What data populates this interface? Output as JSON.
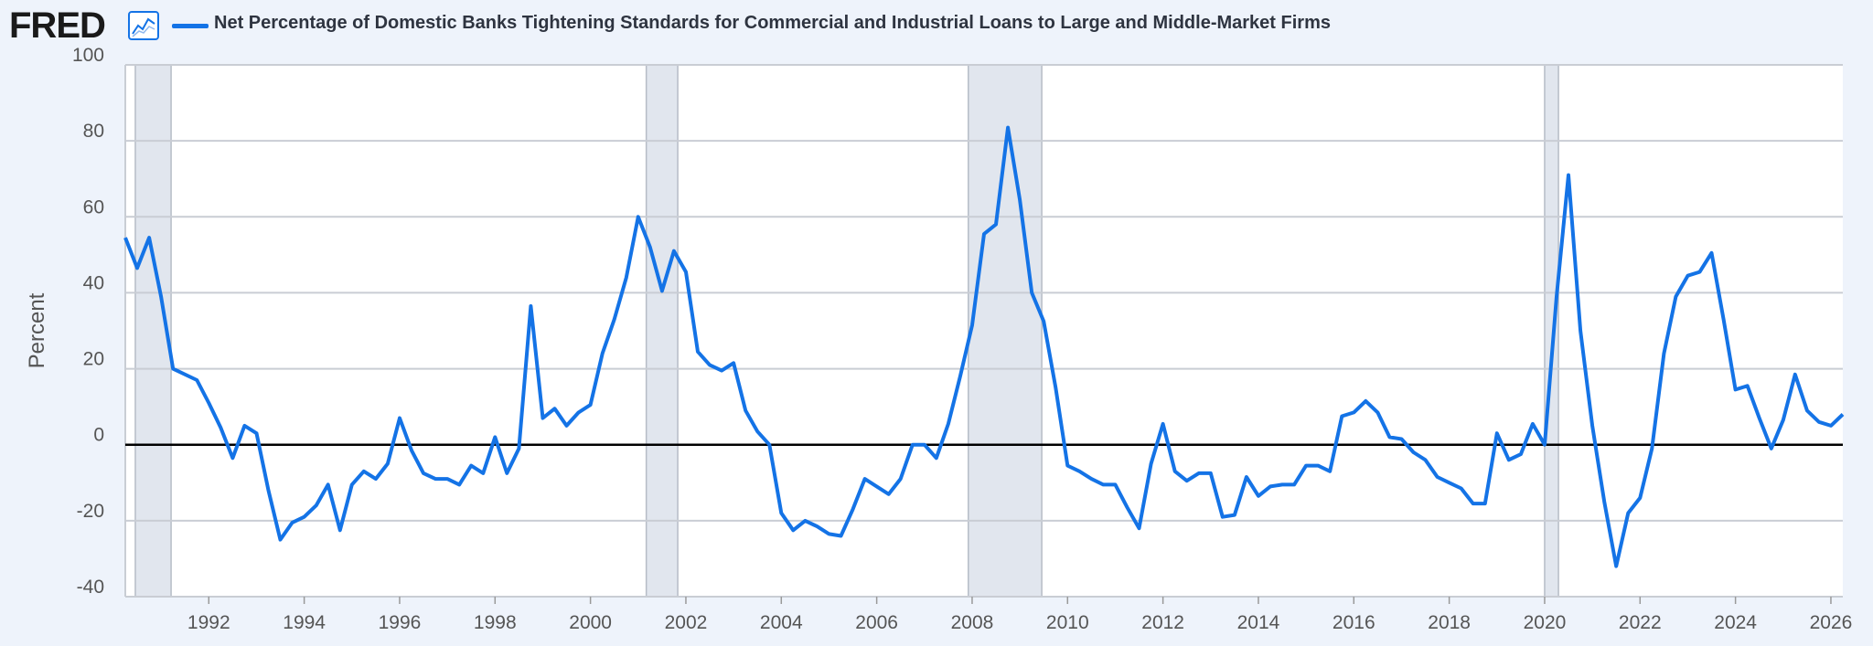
{
  "header": {
    "logo_text": "FRED",
    "logo_icon": "line-chart-icon",
    "title": "Net Percentage of Domestic Banks Tightening Standards for Commercial and Industrial Loans to Large and Middle-Market Firms"
  },
  "colors": {
    "series": "#1473e6",
    "recession": "#e1e6ee",
    "zero_line": "#000000",
    "grid": "#c9cdd4",
    "background": "#eef3fb",
    "plot_bg": "#ffffff"
  },
  "chart_data": {
    "type": "line",
    "title": "Net Percentage of Domestic Banks Tightening Standards for Commercial and Industrial Loans to Large and Middle-Market Firms",
    "xlabel": "",
    "ylabel": "Percent",
    "xlim": [
      1990.25,
      2026.25
    ],
    "ylim": [
      -40,
      100
    ],
    "x_ticks": [
      1992,
      1994,
      1996,
      1998,
      2000,
      2002,
      2004,
      2006,
      2008,
      2010,
      2012,
      2014,
      2016,
      2018,
      2020,
      2022,
      2024,
      2026
    ],
    "x_tick_labels": [
      "1992",
      "1994",
      "1996",
      "1998",
      "2000",
      "2002",
      "2004",
      "2006",
      "2008",
      "2010",
      "2012",
      "2014",
      "2016",
      "2018",
      "2020",
      "2022",
      "2024",
      "2026"
    ],
    "y_ticks": [
      100,
      80,
      60,
      40,
      20,
      0,
      -20,
      -40
    ],
    "y_tick_labels": [
      "100",
      "80",
      "60",
      "40",
      "20",
      "0",
      "-20",
      "-40"
    ],
    "grid": true,
    "zero_line": true,
    "recessions": [
      [
        1990.46,
        1991.21
      ],
      [
        2001.17,
        2001.83
      ],
      [
        2007.92,
        2009.46
      ],
      [
        2020.0,
        2020.29
      ]
    ],
    "series": [
      {
        "x": [
          1990.25,
          1990.5,
          1990.75,
          1991.0,
          1991.25,
          1991.75,
          1992.0,
          1992.25,
          1992.5,
          1992.75,
          1993.0,
          1993.25,
          1993.5,
          1993.75,
          1994.0,
          1994.25,
          1994.5,
          1994.75,
          1995.0,
          1995.25,
          1995.5,
          1995.75,
          1996.0,
          1996.25,
          1996.5,
          1996.75,
          1997.0,
          1997.25,
          1997.5,
          1997.75,
          1998.0,
          1998.25,
          1998.5,
          1998.75,
          1999.0,
          1999.25,
          1999.5,
          1999.75,
          2000.0,
          2000.25,
          2000.5,
          2000.75,
          2001.0,
          2001.25,
          2001.5,
          2001.75,
          2002.0,
          2002.25,
          2002.5,
          2002.75,
          2003.0,
          2003.25,
          2003.5,
          2003.75,
          2004.0,
          2004.25,
          2004.5,
          2004.75,
          2005.0,
          2005.25,
          2005.5,
          2005.75,
          2006.0,
          2006.25,
          2006.5,
          2006.75,
          2007.0,
          2007.25,
          2007.5,
          2007.75,
          2008.0,
          2008.25,
          2008.5,
          2008.75,
          2009.0,
          2009.25,
          2009.5,
          2009.75,
          2010.0,
          2010.25,
          2010.5,
          2010.75,
          2011.0,
          2011.25,
          2011.5,
          2011.75,
          2012.0,
          2012.25,
          2012.5,
          2012.75,
          2013.0,
          2013.25,
          2013.5,
          2013.75,
          2014.0,
          2014.25,
          2014.5,
          2014.75,
          2015.0,
          2015.25,
          2015.5,
          2015.75,
          2016.0,
          2016.25,
          2016.5,
          2016.75,
          2017.0,
          2017.25,
          2017.5,
          2017.75,
          2018.0,
          2018.25,
          2018.5,
          2018.75,
          2019.0,
          2019.25,
          2019.5,
          2019.75,
          2020.0,
          2020.25,
          2020.5,
          2020.75,
          2021.0,
          2021.25,
          2021.5,
          2021.75,
          2022.0,
          2022.25,
          2022.5,
          2022.75,
          2023.0,
          2023.25,
          2023.5,
          2023.75,
          2024.0,
          2024.25,
          2024.5,
          2024.75,
          2025.0,
          2025.25,
          2025.5,
          2025.75,
          2026.0,
          2026.25
        ],
        "y": [
          54.5,
          46.5,
          54.5,
          39,
          20,
          17,
          11,
          4.5,
          -3.5,
          5,
          3,
          -12,
          -25,
          -20.5,
          -19,
          -16,
          -10.5,
          -22.5,
          -10.5,
          -7,
          -9,
          -5,
          7,
          -1.5,
          -7.5,
          -9,
          -9,
          -10.5,
          -5.5,
          -7.5,
          2,
          -7.5,
          -1,
          36.5,
          7,
          9.5,
          5,
          8.5,
          10.5,
          24,
          33,
          44,
          60,
          52,
          40.5,
          51,
          45.5,
          24.5,
          21,
          19.5,
          21.5,
          9,
          3.5,
          0,
          -18,
          -22.5,
          -20,
          -21.5,
          -23.5,
          -24,
          -17,
          -9,
          -11,
          -13,
          -9,
          0,
          0,
          -3.5,
          5.5,
          18,
          31.5,
          55.5,
          58,
          83.5,
          64.5,
          40,
          32.5,
          15,
          -5.5,
          -7,
          -9,
          -10.5,
          -10.5,
          -16.5,
          -22,
          -5,
          5.5,
          -7,
          -9.5,
          -7.5,
          -7.5,
          -19,
          -18.5,
          -8.5,
          -13.5,
          -11,
          -10.5,
          -10.5,
          -5.5,
          -5.5,
          -7,
          7.5,
          8.5,
          11.5,
          8.5,
          2,
          1.5,
          -2,
          -4,
          -8.5,
          -10,
          -11.5,
          -15.5,
          -15.5,
          3,
          -4,
          -2.5,
          5.5,
          0,
          39,
          71,
          30,
          5,
          -15,
          -32,
          -18,
          -14,
          -1,
          24,
          39,
          44.5,
          45.5,
          50.5,
          33,
          14.5,
          15.5,
          7,
          -1,
          6.5,
          18.5,
          9,
          6,
          5,
          8
        ]
      }
    ]
  }
}
